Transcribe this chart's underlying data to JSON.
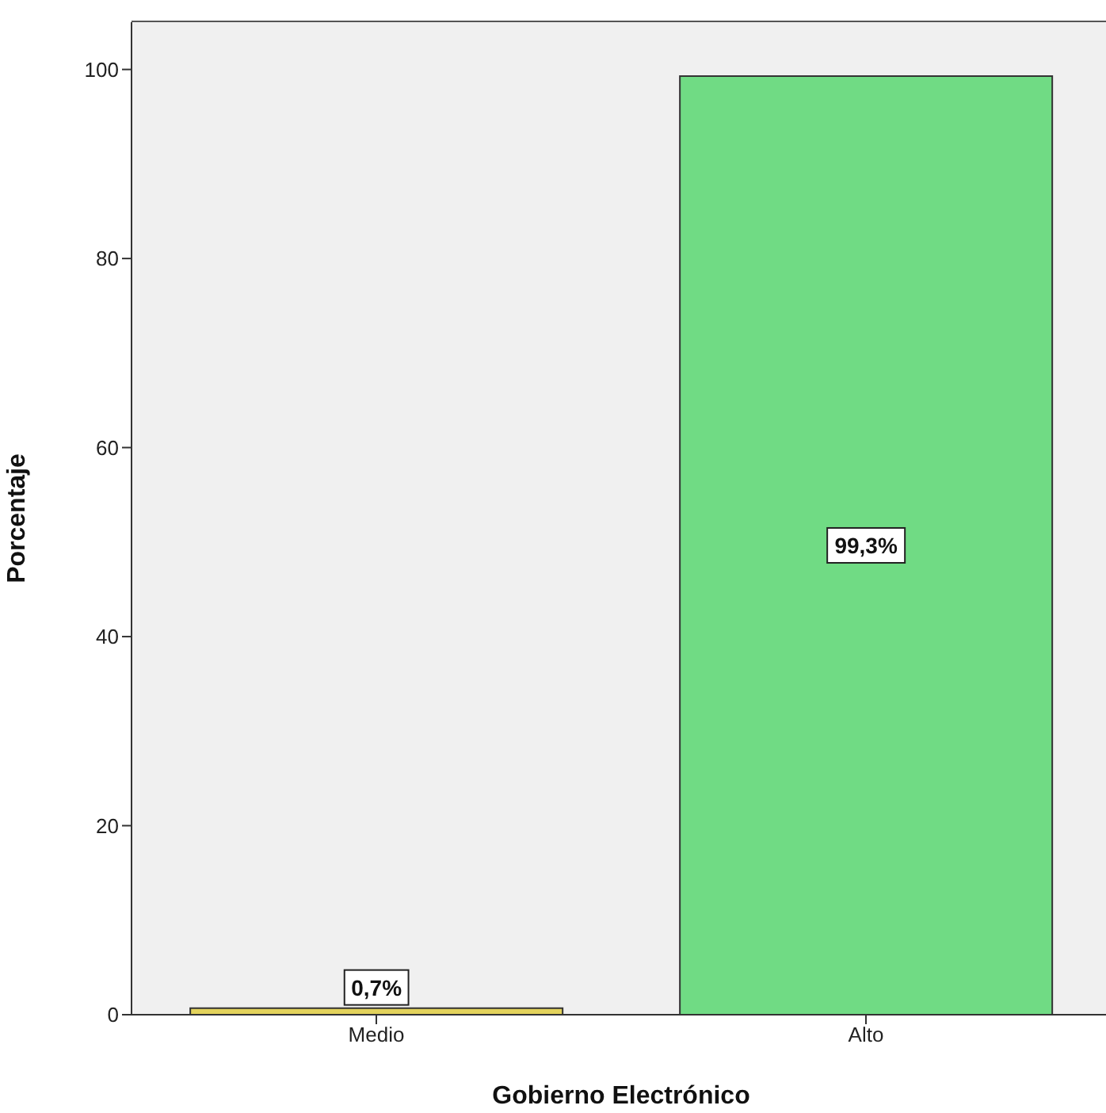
{
  "chart_data": {
    "type": "bar",
    "xlabel": "Gobierno Electrónico",
    "ylabel": "Porcentaje",
    "categories": [
      "Medio",
      "Alto"
    ],
    "values": [
      0.7,
      99.3
    ],
    "value_labels": [
      "0,7%",
      "99,3%"
    ],
    "colors": [
      "#e3d35c",
      "#70db84"
    ],
    "ylim": [
      0,
      105
    ],
    "yticks": [
      0,
      20,
      40,
      60,
      80,
      100
    ],
    "grid": false
  }
}
